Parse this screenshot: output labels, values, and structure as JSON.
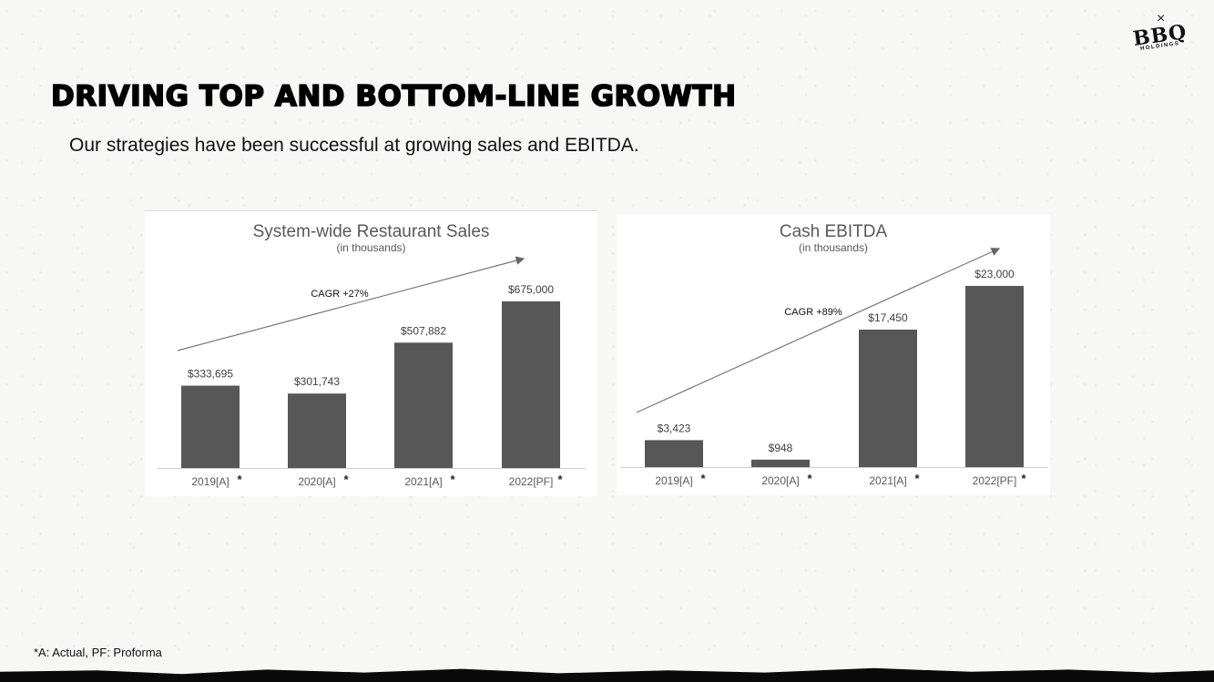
{
  "page": {
    "title": "DRIVING TOP AND BOTTOM-LINE GROWTH",
    "subtitle": "Our strategies have been successful at growing sales and EBITDA.",
    "footnote": "*A:  Actual, PF:  Proforma",
    "logo": {
      "mark": "×",
      "brand": "BBQ",
      "subbrand": "HOLDINGS"
    }
  },
  "chart_data": [
    {
      "type": "bar",
      "title": "System-wide Restaurant Sales",
      "subtitle": "(in thousands)",
      "categories": [
        "2019[A]",
        "2020[A]",
        "2021[A]",
        "2022[PF]"
      ],
      "values": [
        333695,
        301743,
        507882,
        675000
      ],
      "data_labels": [
        "$333,695",
        "$301,743",
        "$507,882",
        "$675,000"
      ],
      "annotation": "CAGR +27%",
      "ylim": [
        0,
        675000
      ],
      "bar_color": "#575757",
      "asterisk": "*"
    },
    {
      "type": "bar",
      "title": "Cash EBITDA",
      "subtitle": "(in thousands)",
      "categories": [
        "2019[A]",
        "2020[A]",
        "2021[A]",
        "2022[PF]"
      ],
      "values": [
        3423,
        948,
        17450,
        23000
      ],
      "data_labels": [
        "$3,423",
        "$948",
        "$17,450",
        "$23,000"
      ],
      "annotation": "CAGR +89%",
      "ylim": [
        0,
        23000
      ],
      "bar_color": "#575757",
      "asterisk": "*"
    }
  ]
}
